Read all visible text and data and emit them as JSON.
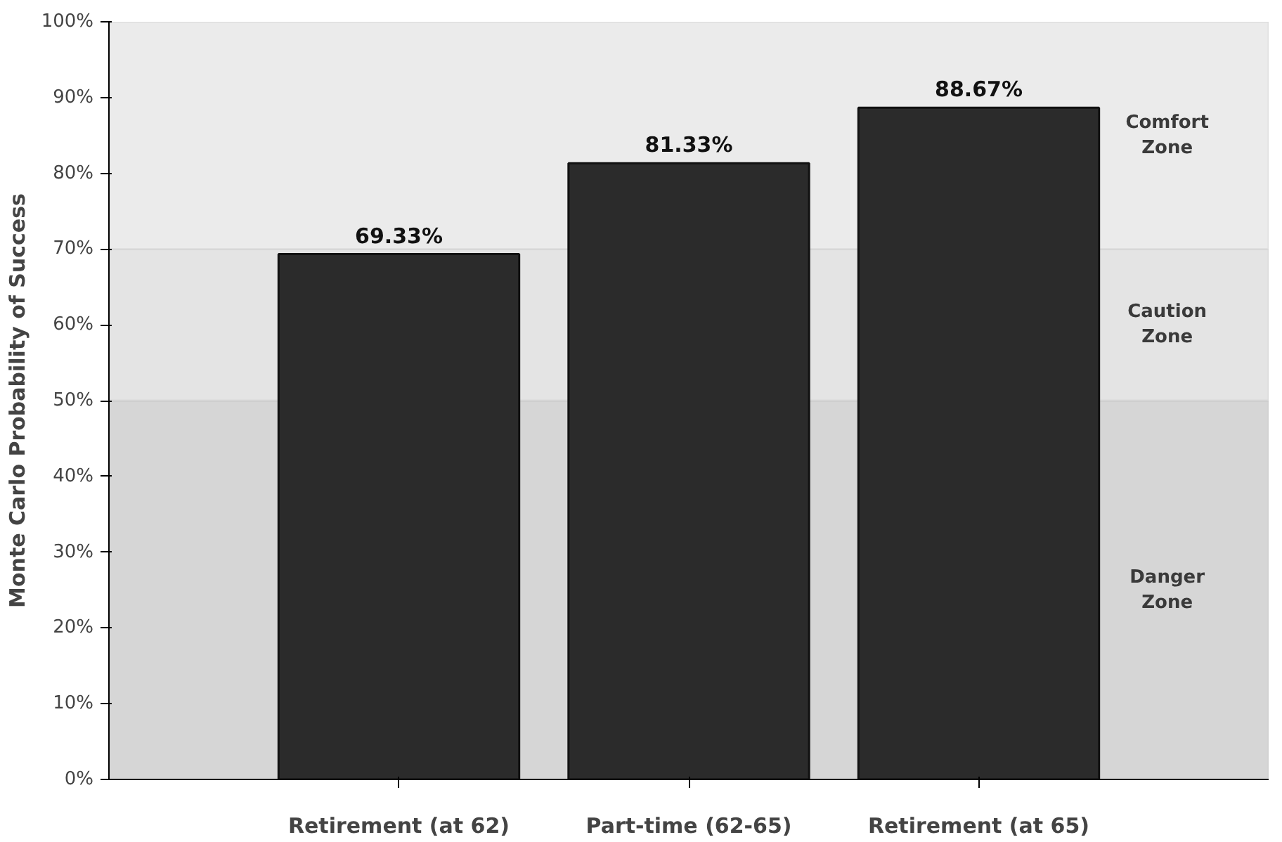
{
  "chart_data": {
    "type": "bar",
    "ylabel": "Monte Carlo Probability of Success",
    "categories": [
      "Retirement (at 62)",
      "Part-time (62-65)",
      "Retirement (at 65)"
    ],
    "values": [
      69.33,
      81.33,
      88.67
    ],
    "value_labels": [
      "69.33%",
      "81.33%",
      "88.67%"
    ],
    "color": "#2b2b2b",
    "ylim": [
      0,
      100
    ],
    "yticks": [
      {
        "value": 0,
        "label": "0%"
      },
      {
        "value": 10,
        "label": "10%"
      },
      {
        "value": 20,
        "label": "20%"
      },
      {
        "value": 30,
        "label": "30%"
      },
      {
        "value": 40,
        "label": "40%"
      },
      {
        "value": 50,
        "label": "50%"
      },
      {
        "value": 60,
        "label": "60%"
      },
      {
        "value": 70,
        "label": "70%"
      },
      {
        "value": 80,
        "label": "80%"
      },
      {
        "value": 90,
        "label": "90%"
      },
      {
        "value": 100,
        "label": "100%"
      }
    ],
    "bands": [
      {
        "axis": "y",
        "from": 0,
        "to": 50,
        "label": "Danger Zone",
        "color": "#d6d6d6"
      },
      {
        "axis": "y",
        "from": 50,
        "to": 70,
        "label": "Caution Zone",
        "color": "#e4e4e4"
      },
      {
        "axis": "y",
        "from": 70,
        "to": 100,
        "label": "Comfort Zone",
        "color": "#ebebeb"
      }
    ]
  }
}
